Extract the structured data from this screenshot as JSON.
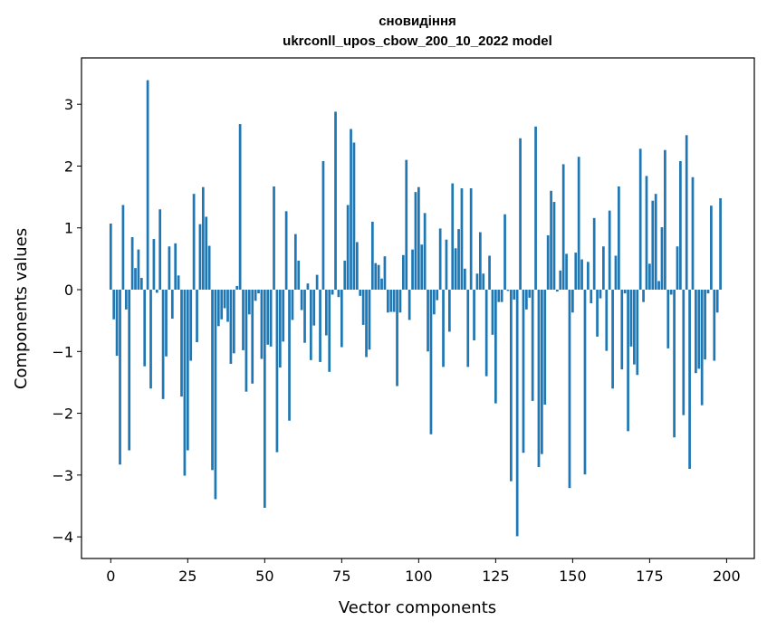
{
  "chart_data": {
    "type": "bar",
    "title_line1": "сновидіння",
    "title_line2": "ukrconll_upos_cbow_200_10_2022 model",
    "xlabel": "Vector components",
    "ylabel": "Components values",
    "xlim": [
      -9.5,
      209
    ],
    "ylim": [
      -4.35,
      3.75
    ],
    "xticks": [
      0,
      25,
      50,
      75,
      100,
      125,
      150,
      175,
      200
    ],
    "yticks": [
      -4,
      -3,
      -2,
      -1,
      0,
      1,
      2,
      3
    ],
    "ytick_labels": [
      "−4",
      "−3",
      "−2",
      "−1",
      "0",
      "1",
      "2",
      "3"
    ],
    "values": [
      1.07,
      -0.48,
      -1.07,
      -2.83,
      1.37,
      -0.32,
      -2.6,
      0.85,
      0.35,
      0.65,
      0.19,
      -1.24,
      3.39,
      -1.6,
      0.82,
      -0.05,
      1.3,
      -1.77,
      -1.08,
      0.7,
      -0.47,
      0.75,
      0.23,
      -1.73,
      -3.01,
      -2.6,
      -1.15,
      1.55,
      -0.85,
      1.06,
      1.66,
      1.18,
      0.71,
      -2.92,
      -3.39,
      -0.59,
      -0.48,
      -0.3,
      -0.52,
      -1.2,
      -1.03,
      0.06,
      2.68,
      -0.98,
      -1.65,
      -0.4,
      -1.52,
      -0.18,
      -0.06,
      -1.12,
      -3.53,
      -0.89,
      -0.92,
      1.67,
      -2.63,
      -1.26,
      -0.84,
      1.27,
      -2.12,
      -0.49,
      0.9,
      0.47,
      -0.33,
      -0.86,
      0.1,
      -1.14,
      -0.58,
      0.24,
      -1.17,
      2.08,
      -0.74,
      -1.33,
      -0.08,
      2.88,
      -0.12,
      -0.93,
      0.47,
      1.37,
      2.6,
      2.38,
      0.77,
      -0.1,
      -0.57,
      -1.09,
      -0.97,
      1.1,
      0.43,
      0.4,
      0.18,
      0.54,
      -0.37,
      -0.36,
      -0.36,
      -1.56,
      -0.37,
      0.56,
      2.1,
      -0.49,
      0.65,
      1.58,
      1.66,
      0.73,
      1.24,
      -1.0,
      -2.34,
      -0.4,
      -0.17,
      0.99,
      -1.25,
      0.81,
      -0.68,
      1.72,
      0.67,
      0.98,
      1.64,
      0.34,
      -1.25,
      1.64,
      -0.82,
      0.26,
      0.93,
      0.26,
      -1.4,
      0.55,
      -0.73,
      -1.84,
      -0.2,
      -0.2,
      1.22,
      -0.02,
      -3.1,
      -0.16,
      -3.99,
      2.45,
      -2.64,
      -0.32,
      -0.13,
      -1.8,
      2.64,
      -2.87,
      -2.66,
      -1.86,
      0.88,
      1.6,
      1.42,
      -0.03,
      0.31,
      2.03,
      0.58,
      -3.21,
      -0.37,
      0.6,
      2.15,
      0.49,
      -2.99,
      0.45,
      -0.22,
      1.16,
      -0.76,
      -0.14,
      0.7,
      -0.99,
      1.28,
      -1.6,
      0.55,
      1.67,
      -1.29,
      -0.06,
      -2.29,
      -0.92,
      -1.21,
      -1.38,
      2.28,
      -0.2,
      1.84,
      0.42,
      1.44,
      1.55,
      0.14,
      1.01,
      2.26,
      -0.95,
      -0.08,
      -2.39,
      0.7,
      2.08,
      -2.03,
      2.5,
      -2.9,
      1.82,
      -1.35,
      -1.28,
      -1.87,
      -1.13,
      -0.06,
      1.36,
      -1.15,
      -0.37,
      1.48
    ]
  }
}
